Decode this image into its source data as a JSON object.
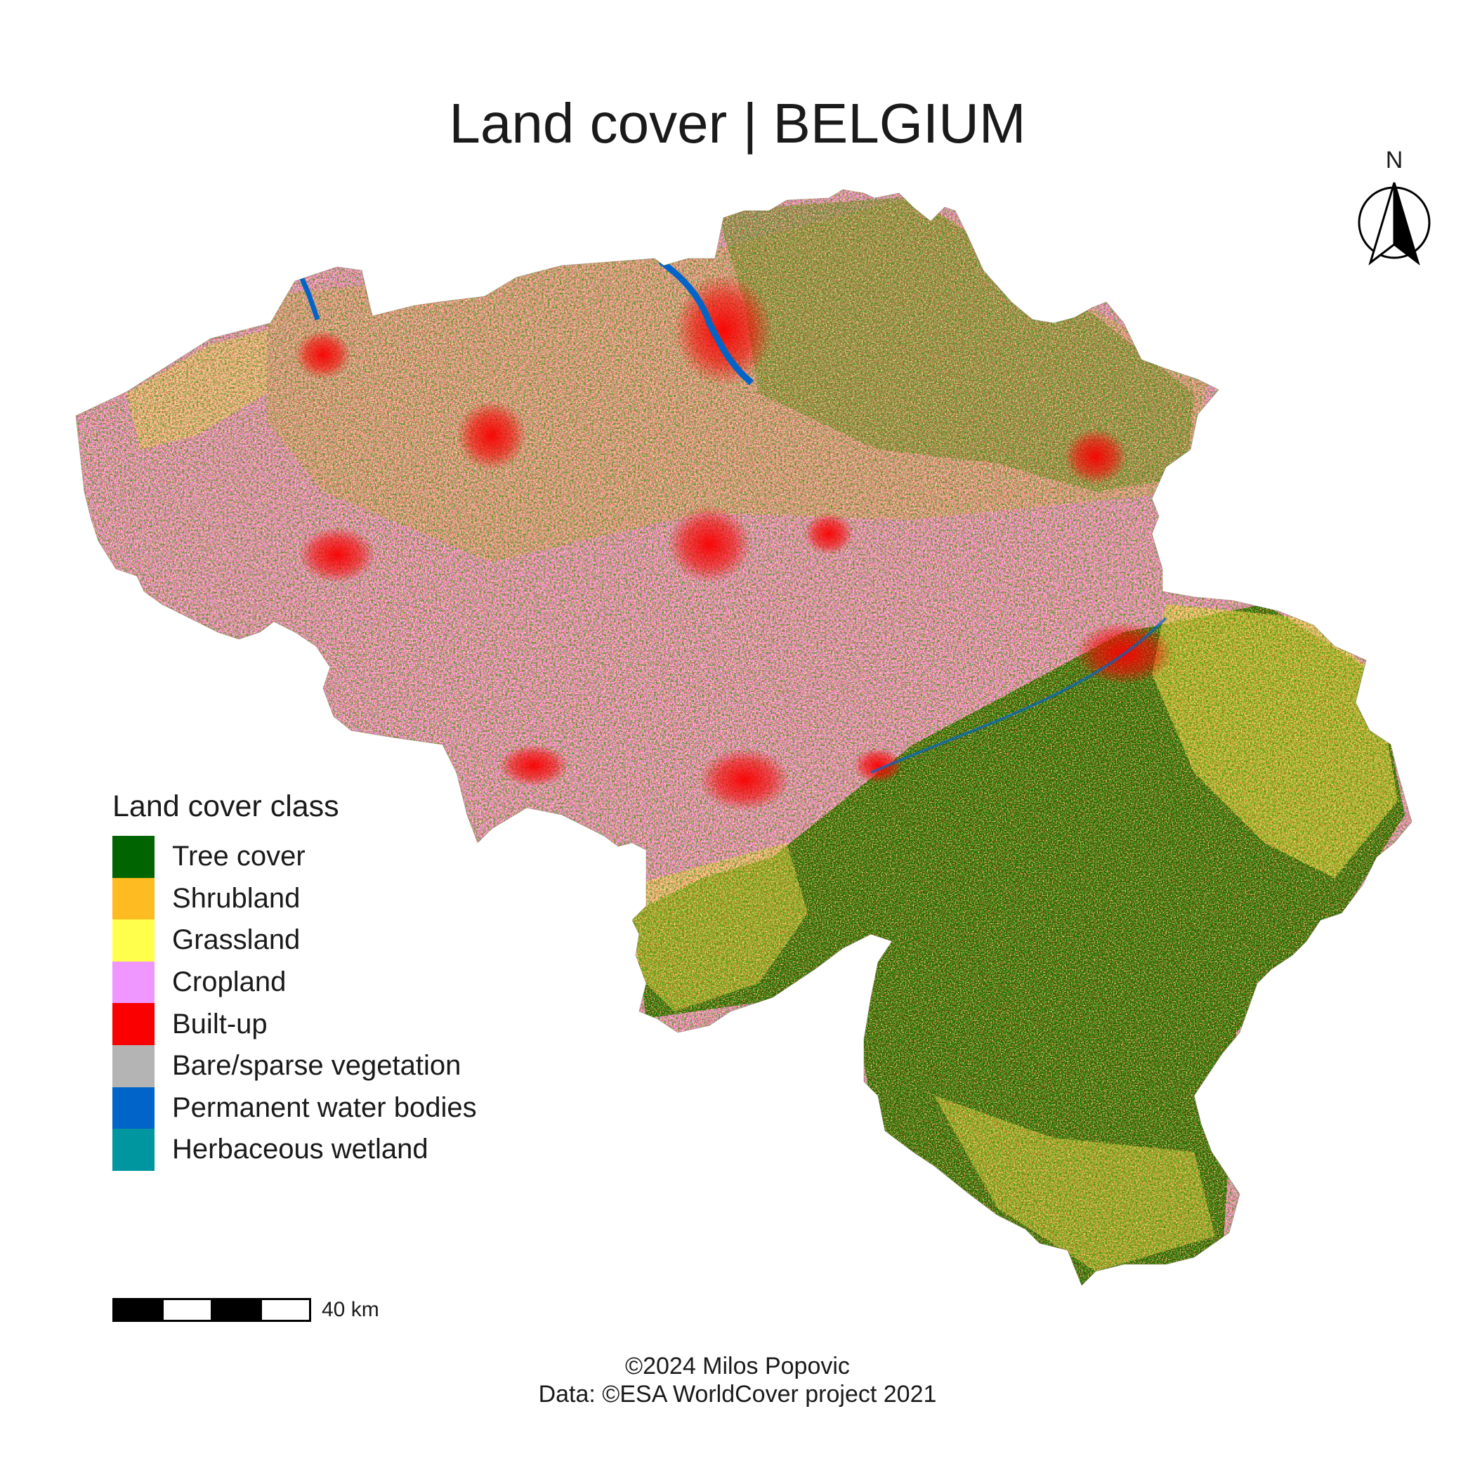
{
  "title": "Land cover | BELGIUM",
  "north_arrow": {
    "label": "N",
    "icon": "north-arrow-icon"
  },
  "legend": {
    "title": "Land cover class",
    "items": [
      {
        "label": "Tree cover",
        "color": "#006400"
      },
      {
        "label": "Shrubland",
        "color": "#ffbb22"
      },
      {
        "label": "Grassland",
        "color": "#ffff4c"
      },
      {
        "label": "Cropland",
        "color": "#f096ff"
      },
      {
        "label": "Built-up",
        "color": "#fa0000"
      },
      {
        "label": "Bare/sparse vegetation",
        "color": "#b4b4b4"
      },
      {
        "label": "Permanent water bodies",
        "color": "#0064c8"
      },
      {
        "label": "Herbaceous wetland",
        "color": "#0096a0"
      }
    ]
  },
  "scale_bar": {
    "label": "40 km"
  },
  "credits": {
    "line1": "©2024 Milos Popovic",
    "line2": "Data: ©ESA WorldCover project 2021"
  }
}
